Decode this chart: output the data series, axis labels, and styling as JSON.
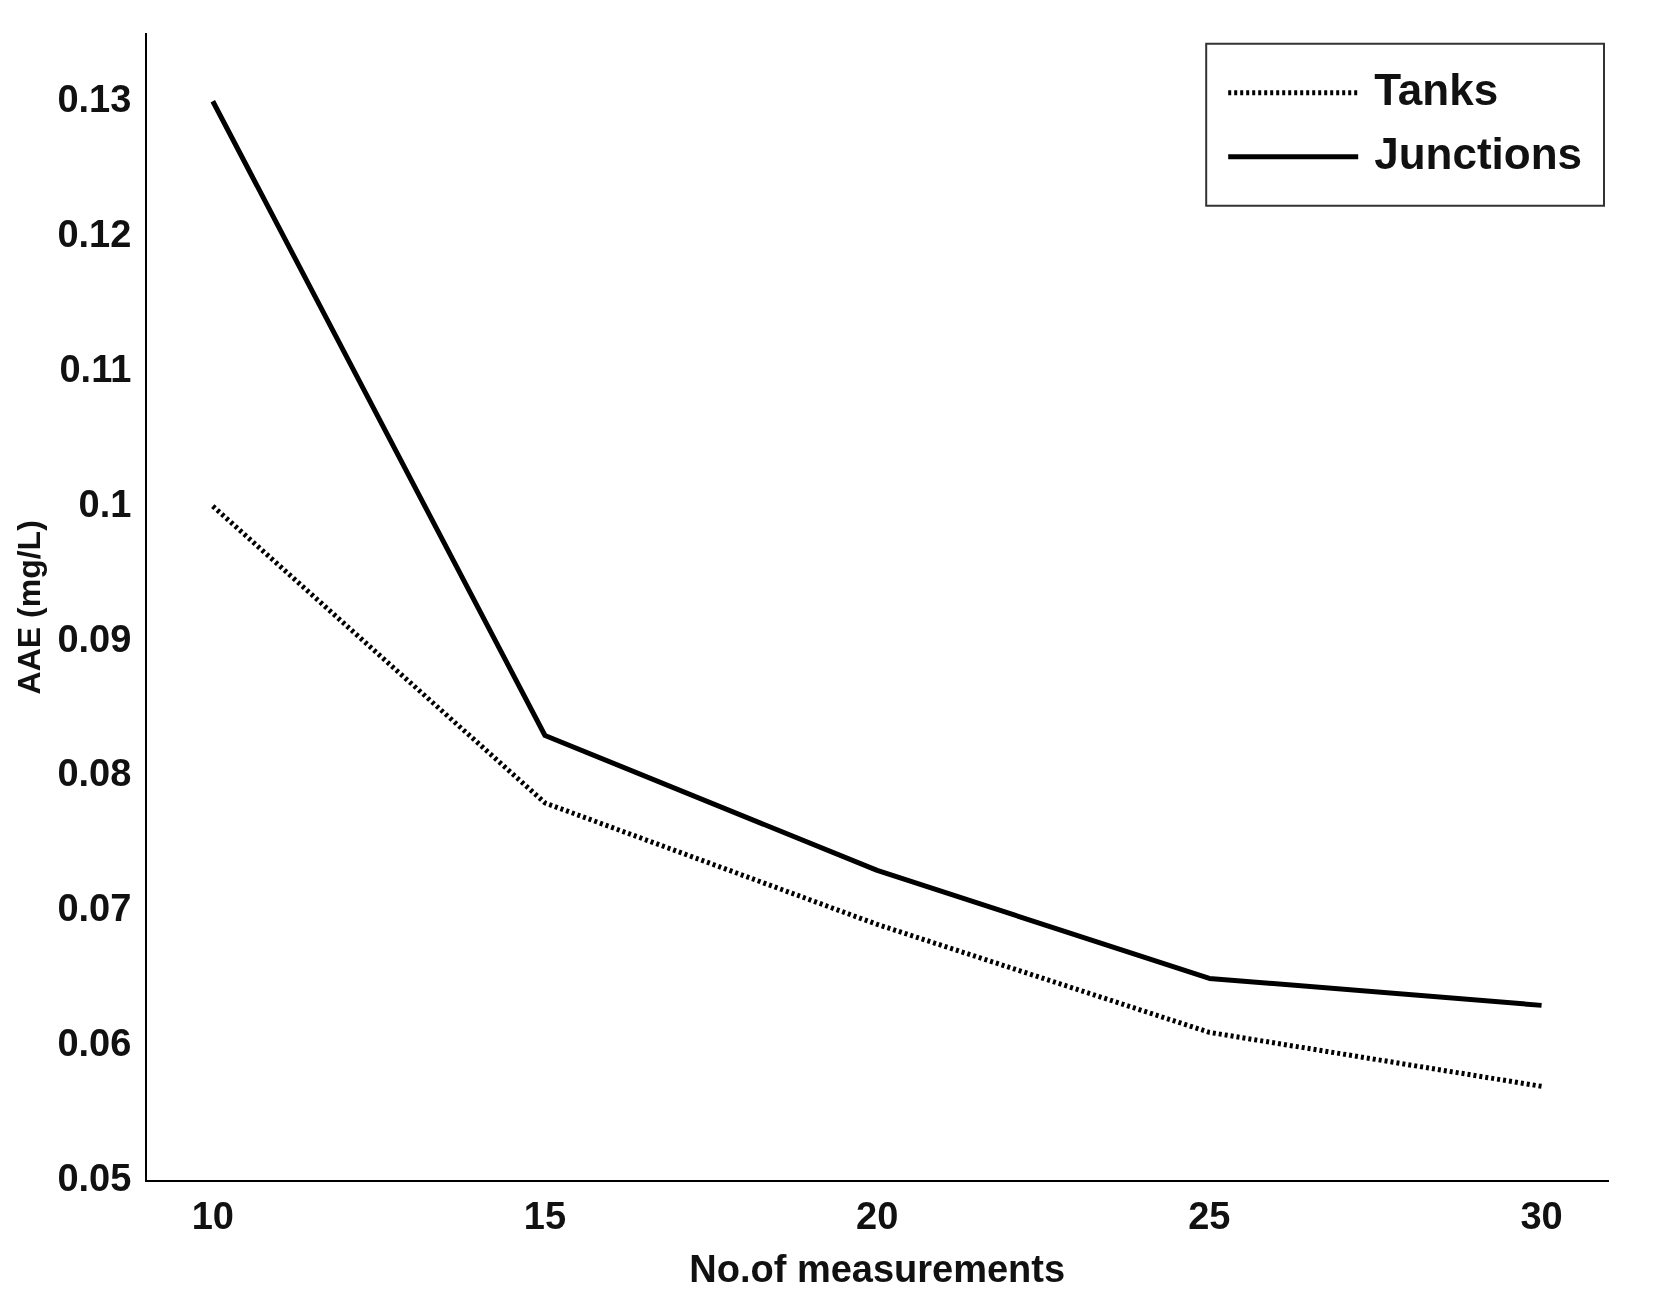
{
  "chart_data": {
    "type": "line",
    "xlabel": "No.of measurements",
    "ylabel": "AAE (mg/L)",
    "x": [
      10,
      15,
      20,
      25,
      30
    ],
    "series": [
      {
        "name": "Tanks",
        "color": "#000000",
        "line_style": "dotted",
        "values": [
          0.1,
          0.078,
          0.069,
          0.061,
          0.057
        ]
      },
      {
        "name": "Junctions",
        "color": "#000000",
        "line_style": "solid",
        "values": [
          0.13,
          0.083,
          0.073,
          0.065,
          0.063
        ]
      }
    ],
    "xlim": [
      9,
      31
    ],
    "xticks": [
      10,
      15,
      20,
      25,
      30
    ],
    "ylim": [
      0.05,
      0.135
    ],
    "yticks": [
      0.05,
      0.06,
      0.07,
      0.08,
      0.09,
      0.1,
      0.11,
      0.12,
      0.13
    ],
    "grid": false,
    "legend": "top right",
    "marker": "none"
  }
}
